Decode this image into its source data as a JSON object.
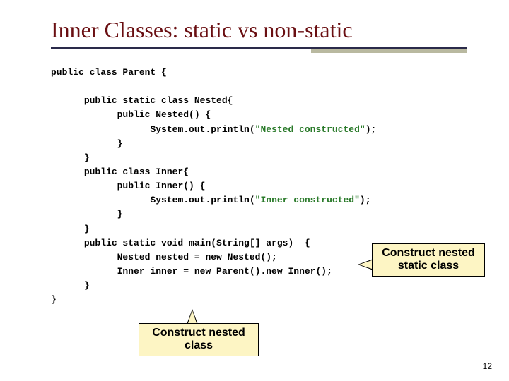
{
  "title": "Inner Classes: static vs non-static",
  "code_lines": [
    {
      "indent": 0,
      "segs": [
        {
          "t": "public class Parent {"
        }
      ]
    },
    {
      "indent": 0,
      "segs": [
        {
          "t": ""
        }
      ]
    },
    {
      "indent": 1,
      "segs": [
        {
          "t": "public static class Nested{"
        }
      ]
    },
    {
      "indent": 2,
      "segs": [
        {
          "t": "public Nested() {"
        }
      ]
    },
    {
      "indent": 3,
      "segs": [
        {
          "t": "System.out.println("
        },
        {
          "t": "\"Nested constructed\"",
          "cls": "str"
        },
        {
          "t": ");"
        }
      ]
    },
    {
      "indent": 2,
      "segs": [
        {
          "t": "}"
        }
      ]
    },
    {
      "indent": 1,
      "segs": [
        {
          "t": "}"
        }
      ]
    },
    {
      "indent": 1,
      "segs": [
        {
          "t": "public class Inner{"
        }
      ]
    },
    {
      "indent": 2,
      "segs": [
        {
          "t": "public Inner() {"
        }
      ]
    },
    {
      "indent": 3,
      "segs": [
        {
          "t": "System.out.println("
        },
        {
          "t": "\"Inner constructed\"",
          "cls": "str"
        },
        {
          "t": ");"
        }
      ]
    },
    {
      "indent": 2,
      "segs": [
        {
          "t": "}"
        }
      ]
    },
    {
      "indent": 1,
      "segs": [
        {
          "t": "}"
        }
      ]
    },
    {
      "indent": 1,
      "segs": [
        {
          "t": "public static void main(String[] args)  {"
        }
      ]
    },
    {
      "indent": 2,
      "segs": [
        {
          "t": "Nested nested = new Nested();"
        }
      ]
    },
    {
      "indent": 2,
      "segs": [
        {
          "t": "Inner inner = new Parent().new Inner();"
        }
      ]
    },
    {
      "indent": 1,
      "segs": [
        {
          "t": "}"
        }
      ]
    },
    {
      "indent": 0,
      "segs": [
        {
          "t": "}"
        }
      ]
    }
  ],
  "callout1_line1": "Construct nested",
  "callout1_line2": "static class",
  "callout2_line1": "Construct nested",
  "callout2_line2": "class",
  "page_number": "12",
  "colors": {
    "title": "#6a0f12",
    "underline": "#2a2a4a",
    "underline_shadow": "#b9b9a0",
    "callout_bg": "#fdf5c4",
    "string": "#2a7a2a"
  },
  "indent_unit": "      "
}
